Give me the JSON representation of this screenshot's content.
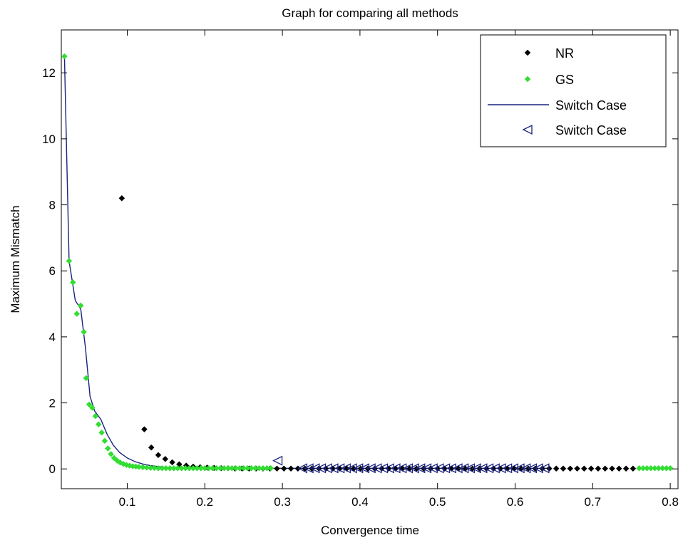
{
  "chart_data": {
    "type": "scatter",
    "title": "Graph for comparing all methods",
    "xlabel": "Convergence time",
    "ylabel": "Maximum Mismatch",
    "xlim": [
      0.015,
      0.81
    ],
    "ylim": [
      -0.6,
      13.3
    ],
    "x_ticks": [
      0.1,
      0.2,
      0.3,
      0.4,
      0.5,
      0.6,
      0.7,
      0.8
    ],
    "x_tick_labels": [
      "0.1",
      "0.2",
      "0.3",
      "0.4",
      "0.5",
      "0.6",
      "0.7",
      "0.8"
    ],
    "y_ticks": [
      0,
      2,
      4,
      6,
      8,
      10,
      12
    ],
    "y_tick_labels": [
      "0",
      "2",
      "4",
      "6",
      "8",
      "10",
      "12"
    ],
    "grid": false,
    "legend_position": "top-right",
    "series": [
      {
        "name": "NR",
        "style": "markers",
        "marker": "diamond",
        "color": "#000000",
        "x": [
          0.093,
          0.122,
          0.131,
          0.14,
          0.149,
          0.158,
          0.167,
          0.176,
          0.185,
          0.194,
          0.203,
          0.212,
          0.221,
          0.23,
          0.239,
          0.248,
          0.257,
          0.266,
          0.275,
          0.284,
          0.293,
          0.302,
          0.311,
          0.32,
          0.329,
          0.338,
          0.347,
          0.356,
          0.365,
          0.374,
          0.383,
          0.392,
          0.401,
          0.41,
          0.419,
          0.428,
          0.437,
          0.446,
          0.455,
          0.464,
          0.473,
          0.482,
          0.491,
          0.5,
          0.509,
          0.518,
          0.527,
          0.536,
          0.545,
          0.554,
          0.563,
          0.572,
          0.581,
          0.59,
          0.599,
          0.608,
          0.617,
          0.626,
          0.635,
          0.644,
          0.653,
          0.662,
          0.671,
          0.68,
          0.689,
          0.698,
          0.707,
          0.716,
          0.725,
          0.734,
          0.743,
          0.752
        ],
        "y": [
          8.2,
          1.2,
          0.65,
          0.42,
          0.3,
          0.2,
          0.14,
          0.1,
          0.07,
          0.05,
          0.04,
          0.03,
          0.02,
          0.02,
          0.01,
          0.01,
          0.01,
          0.01,
          0.01,
          0.01,
          0.01,
          0.01,
          0.01,
          0.01,
          0.01,
          0.01,
          0.01,
          0.01,
          0.01,
          0.01,
          0.01,
          0.01,
          0.01,
          0.01,
          0.01,
          0.01,
          0.01,
          0.01,
          0.01,
          0.01,
          0.01,
          0.01,
          0.01,
          0.01,
          0.01,
          0.01,
          0.01,
          0.01,
          0.01,
          0.01,
          0.01,
          0.01,
          0.01,
          0.01,
          0.01,
          0.01,
          0.01,
          0.01,
          0.01,
          0.01,
          0.01,
          0.01,
          0.01,
          0.01,
          0.01,
          0.01,
          0.01,
          0.01,
          0.01,
          0.01,
          0.01,
          0.01
        ]
      },
      {
        "name": "GS",
        "style": "markers",
        "marker": "diamond",
        "color": "#33dd33",
        "x": [
          0.019,
          0.025,
          0.03,
          0.035,
          0.04,
          0.044,
          0.047,
          0.051,
          0.055,
          0.059,
          0.063,
          0.067,
          0.071,
          0.075,
          0.079,
          0.083,
          0.087,
          0.091,
          0.095,
          0.099,
          0.103,
          0.107,
          0.111,
          0.115,
          0.12,
          0.125,
          0.13,
          0.135,
          0.14,
          0.145,
          0.15,
          0.155,
          0.16,
          0.165,
          0.17,
          0.175,
          0.18,
          0.185,
          0.19,
          0.195,
          0.2,
          0.205,
          0.21,
          0.215,
          0.22,
          0.225,
          0.23,
          0.235,
          0.24,
          0.245,
          0.25,
          0.255,
          0.26,
          0.265,
          0.27,
          0.275,
          0.28,
          0.285,
          0.76,
          0.765,
          0.77,
          0.775,
          0.78,
          0.785,
          0.79,
          0.795,
          0.8
        ],
        "y": [
          12.5,
          6.3,
          5.65,
          4.7,
          4.95,
          4.15,
          2.75,
          1.95,
          1.85,
          1.6,
          1.35,
          1.1,
          0.85,
          0.62,
          0.45,
          0.33,
          0.25,
          0.19,
          0.15,
          0.12,
          0.1,
          0.08,
          0.07,
          0.06,
          0.05,
          0.04,
          0.03,
          0.03,
          0.02,
          0.02,
          0.02,
          0.02,
          0.02,
          0.02,
          0.02,
          0.02,
          0.02,
          0.02,
          0.02,
          0.02,
          0.02,
          0.02,
          0.02,
          0.02,
          0.02,
          0.02,
          0.02,
          0.02,
          0.02,
          0.02,
          0.02,
          0.02,
          0.02,
          0.02,
          0.02,
          0.02,
          0.02,
          0.02,
          0.02,
          0.02,
          0.02,
          0.02,
          0.02,
          0.02,
          0.02,
          0.02,
          0.02
        ]
      },
      {
        "name": "Switch Case",
        "style": "line",
        "color": "#1a237e",
        "x": [
          0.019,
          0.025,
          0.033,
          0.04,
          0.046,
          0.052,
          0.058,
          0.066,
          0.074,
          0.082,
          0.09,
          0.1,
          0.11,
          0.12,
          0.13,
          0.14,
          0.15,
          0.16,
          0.18,
          0.2,
          0.22,
          0.26,
          0.3,
          0.35,
          0.4,
          0.45,
          0.5,
          0.55,
          0.6,
          0.642
        ],
        "y": [
          12.5,
          6.3,
          5.1,
          4.85,
          3.7,
          2.2,
          1.75,
          1.5,
          1.05,
          0.72,
          0.5,
          0.33,
          0.22,
          0.15,
          0.1,
          0.07,
          0.05,
          0.04,
          0.03,
          0.02,
          0.02,
          0.02,
          0.02,
          0.02,
          0.02,
          0.02,
          0.02,
          0.02,
          0.02,
          0.02
        ]
      },
      {
        "name": "Switch Case",
        "style": "markers",
        "marker": "triangle-left",
        "color": "#1a237e",
        "x": [
          0.294,
          0.326,
          0.334,
          0.342,
          0.35,
          0.358,
          0.366,
          0.374,
          0.382,
          0.39,
          0.398,
          0.406,
          0.414,
          0.422,
          0.43,
          0.438,
          0.446,
          0.454,
          0.462,
          0.47,
          0.478,
          0.486,
          0.494,
          0.502,
          0.51,
          0.518,
          0.526,
          0.534,
          0.542,
          0.55,
          0.558,
          0.566,
          0.574,
          0.582,
          0.59,
          0.598,
          0.606,
          0.614,
          0.622,
          0.63,
          0.638
        ],
        "y": [
          0.25,
          0.02,
          0.02,
          0.02,
          0.02,
          0.02,
          0.02,
          0.02,
          0.02,
          0.02,
          0.02,
          0.02,
          0.02,
          0.02,
          0.02,
          0.02,
          0.02,
          0.02,
          0.02,
          0.02,
          0.02,
          0.02,
          0.02,
          0.02,
          0.02,
          0.02,
          0.02,
          0.02,
          0.02,
          0.02,
          0.02,
          0.02,
          0.02,
          0.02,
          0.02,
          0.02,
          0.02,
          0.02,
          0.02,
          0.02,
          0.02
        ]
      }
    ]
  }
}
